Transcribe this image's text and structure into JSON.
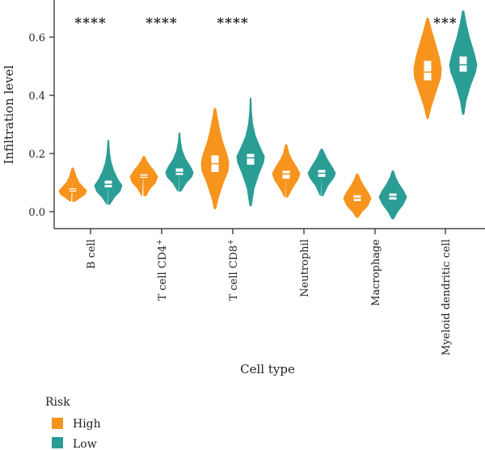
{
  "chart_data": {
    "type": "violin",
    "xlabel": "Cell type",
    "ylabel": "Infiltration level",
    "ylim": [
      -0.09,
      0.72
    ],
    "y_ticks": [
      "0.0",
      "0.2",
      "0.4",
      "0.6"
    ],
    "y_tick_values": [
      0.0,
      0.2,
      0.4,
      0.6
    ],
    "categories": [
      "B cell",
      "T cell CD4",
      "T cell CD8",
      "Neutrophil",
      "Macrophage",
      "Myeloid dendritic cell"
    ],
    "category_labels": [
      {
        "base": "B cell",
        "sup": ""
      },
      {
        "base": "T cell CD4",
        "sup": "+"
      },
      {
        "base": "T cell CD8",
        "sup": "+"
      },
      {
        "base": "Neutrophil",
        "sup": ""
      },
      {
        "base": "Macrophage",
        "sup": ""
      },
      {
        "base": "Myeloid dendritic cell",
        "sup": ""
      }
    ],
    "significance": [
      "****",
      "****",
      "****",
      "",
      "",
      "***"
    ],
    "legend": {
      "title": "Risk",
      "position": "bottom-left"
    },
    "series": [
      {
        "name": "High",
        "color": "#F7941D",
        "groups": [
          {
            "min": 0.035,
            "q1": 0.068,
            "median": 0.075,
            "q3": 0.082,
            "max": 0.15,
            "profile": [
              [
                0.035,
                0.15
              ],
              [
                0.05,
                0.6
              ],
              [
                0.06,
                0.9
              ],
              [
                0.072,
                1.0
              ],
              [
                0.085,
                0.75
              ],
              [
                0.1,
                0.45
              ],
              [
                0.12,
                0.25
              ],
              [
                0.14,
                0.12
              ],
              [
                0.15,
                0.05
              ]
            ]
          },
          {
            "min": 0.055,
            "q1": 0.115,
            "median": 0.122,
            "q3": 0.13,
            "max": 0.19,
            "profile": [
              [
                0.055,
                0.15
              ],
              [
                0.08,
                0.45
              ],
              [
                0.1,
                0.85
              ],
              [
                0.12,
                1.0
              ],
              [
                0.14,
                0.75
              ],
              [
                0.16,
                0.4
              ],
              [
                0.175,
                0.2
              ],
              [
                0.19,
                0.05
              ]
            ]
          },
          {
            "min": 0.01,
            "q1": 0.135,
            "median": 0.165,
            "q3": 0.195,
            "max": 0.355,
            "profile": [
              [
                0.01,
                0.05
              ],
              [
                0.05,
                0.25
              ],
              [
                0.1,
                0.6
              ],
              [
                0.14,
                0.95
              ],
              [
                0.17,
                1.0
              ],
              [
                0.2,
                0.85
              ],
              [
                0.24,
                0.55
              ],
              [
                0.28,
                0.35
              ],
              [
                0.32,
                0.18
              ],
              [
                0.355,
                0.05
              ]
            ]
          },
          {
            "min": 0.05,
            "q1": 0.112,
            "median": 0.13,
            "q3": 0.142,
            "max": 0.23,
            "profile": [
              [
                0.05,
                0.1
              ],
              [
                0.08,
                0.45
              ],
              [
                0.11,
                0.85
              ],
              [
                0.13,
                1.0
              ],
              [
                0.15,
                0.8
              ],
              [
                0.18,
                0.4
              ],
              [
                0.2,
                0.2
              ],
              [
                0.23,
                0.05
              ]
            ]
          },
          {
            "min": -0.02,
            "q1": 0.035,
            "median": 0.046,
            "q3": 0.058,
            "max": 0.13,
            "profile": [
              [
                -0.02,
                0.05
              ],
              [
                0.0,
                0.35
              ],
              [
                0.02,
                0.75
              ],
              [
                0.045,
                1.0
              ],
              [
                0.065,
                0.8
              ],
              [
                0.09,
                0.45
              ],
              [
                0.11,
                0.22
              ],
              [
                0.13,
                0.05
              ]
            ]
          },
          {
            "min": 0.32,
            "q1": 0.45,
            "median": 0.48,
            "q3": 0.52,
            "max": 0.665,
            "profile": [
              [
                0.32,
                0.05
              ],
              [
                0.36,
                0.25
              ],
              [
                0.41,
                0.6
              ],
              [
                0.46,
                0.95
              ],
              [
                0.49,
                1.0
              ],
              [
                0.53,
                0.85
              ],
              [
                0.58,
                0.55
              ],
              [
                0.62,
                0.3
              ],
              [
                0.665,
                0.05
              ]
            ]
          }
        ]
      },
      {
        "name": "Low",
        "color": "#2A9D95",
        "groups": [
          {
            "min": 0.025,
            "q1": 0.082,
            "median": 0.094,
            "q3": 0.108,
            "max": 0.245,
            "profile": [
              [
                0.025,
                0.1
              ],
              [
                0.05,
                0.45
              ],
              [
                0.07,
                0.85
              ],
              [
                0.09,
                1.0
              ],
              [
                0.11,
                0.7
              ],
              [
                0.14,
                0.4
              ],
              [
                0.17,
                0.2
              ],
              [
                0.2,
                0.1
              ],
              [
                0.245,
                0.03
              ]
            ]
          },
          {
            "min": 0.07,
            "q1": 0.125,
            "median": 0.135,
            "q3": 0.15,
            "max": 0.27,
            "profile": [
              [
                0.07,
                0.1
              ],
              [
                0.1,
                0.5
              ],
              [
                0.12,
                0.9
              ],
              [
                0.135,
                1.0
              ],
              [
                0.155,
                0.8
              ],
              [
                0.18,
                0.45
              ],
              [
                0.21,
                0.2
              ],
              [
                0.24,
                0.08
              ],
              [
                0.27,
                0.03
              ]
            ]
          },
          {
            "min": 0.02,
            "q1": 0.16,
            "median": 0.185,
            "q3": 0.2,
            "max": 0.39,
            "profile": [
              [
                0.02,
                0.05
              ],
              [
                0.08,
                0.25
              ],
              [
                0.13,
                0.6
              ],
              [
                0.17,
                0.95
              ],
              [
                0.19,
                1.0
              ],
              [
                0.22,
                0.7
              ],
              [
                0.26,
                0.35
              ],
              [
                0.3,
                0.15
              ],
              [
                0.34,
                0.07
              ],
              [
                0.39,
                0.03
              ]
            ]
          },
          {
            "min": 0.055,
            "q1": 0.118,
            "median": 0.132,
            "q3": 0.145,
            "max": 0.215,
            "profile": [
              [
                0.055,
                0.1
              ],
              [
                0.09,
                0.45
              ],
              [
                0.115,
                0.85
              ],
              [
                0.132,
                1.0
              ],
              [
                0.15,
                0.8
              ],
              [
                0.18,
                0.4
              ],
              [
                0.2,
                0.2
              ],
              [
                0.215,
                0.05
              ]
            ]
          },
          {
            "min": -0.025,
            "q1": 0.04,
            "median": 0.052,
            "q3": 0.064,
            "max": 0.14,
            "profile": [
              [
                -0.025,
                0.05
              ],
              [
                0.0,
                0.35
              ],
              [
                0.025,
                0.75
              ],
              [
                0.05,
                1.0
              ],
              [
                0.07,
                0.8
              ],
              [
                0.095,
                0.45
              ],
              [
                0.12,
                0.18
              ],
              [
                0.14,
                0.05
              ]
            ]
          },
          {
            "min": 0.335,
            "q1": 0.48,
            "median": 0.505,
            "q3": 0.535,
            "max": 0.69,
            "profile": [
              [
                0.335,
                0.05
              ],
              [
                0.38,
                0.2
              ],
              [
                0.43,
                0.5
              ],
              [
                0.48,
                0.9
              ],
              [
                0.505,
                1.0
              ],
              [
                0.545,
                0.8
              ],
              [
                0.6,
                0.45
              ],
              [
                0.65,
                0.2
              ],
              [
                0.69,
                0.05
              ]
            ]
          }
        ]
      }
    ]
  }
}
